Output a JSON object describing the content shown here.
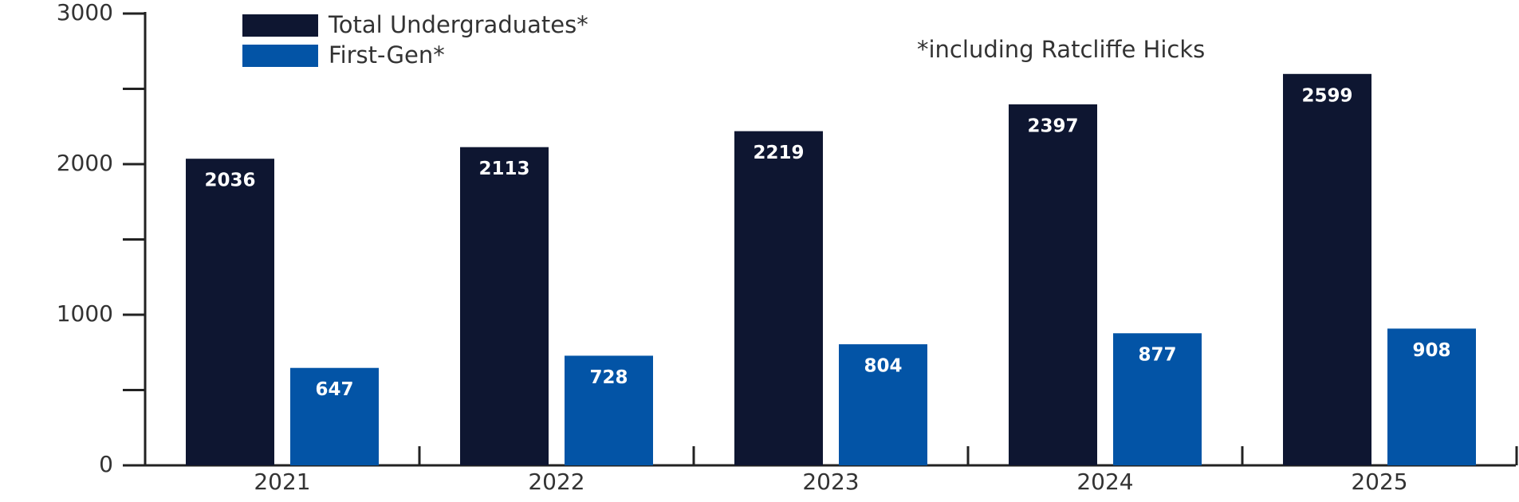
{
  "chart_data": {
    "type": "bar",
    "annotation": "*including Ratcliffe Hicks",
    "categories": [
      "2021",
      "2022",
      "2023",
      "2024",
      "2025"
    ],
    "series": [
      {
        "name": "Total Undergraduates*",
        "color": "#0e1631",
        "values": [
          2036,
          2113,
          2219,
          2397,
          2599
        ]
      },
      {
        "name": "First-Gen*",
        "color": "#0354a6",
        "values": [
          647,
          728,
          804,
          877,
          908
        ]
      }
    ],
    "ylim": [
      0,
      3000
    ],
    "yticks": [
      0,
      1000,
      2000,
      3000
    ],
    "yminor_ticks": [
      500,
      1500,
      2500
    ]
  }
}
